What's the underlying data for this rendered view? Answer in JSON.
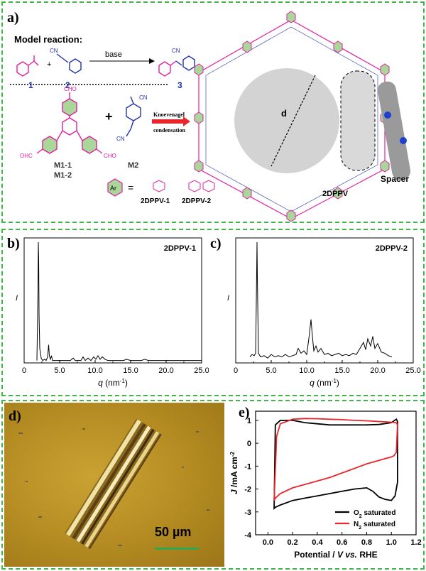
{
  "panel_a": {
    "label": "a)",
    "model_reaction_title": "Model reaction:",
    "compound_numbers": [
      "1",
      "2",
      "3"
    ],
    "base_label": "base",
    "cn_label": "CN",
    "cho_label": "CHO",
    "ohc_label": "OHC",
    "monomer_m1_lines": [
      "M1-1",
      "M1-2"
    ],
    "monomer_m2": "M2",
    "plus": "+",
    "knoevenagel_line1": "Knoevenagel",
    "knoevenagel_line2": "condensation",
    "d_label": "d",
    "spacer_label": "Spacer",
    "framework_label": "2DPPV",
    "ar_label": "Ar",
    "equals": "=",
    "variant_labels": [
      "2DPPV-1",
      "2DPPV-2"
    ]
  },
  "chart_data": [
    {
      "type": "line",
      "panel_label": "b)",
      "title": "2DPPV-1",
      "ylabel": "I",
      "xlabel_main": "q",
      "xlabel_unit": "(nm",
      "xlabel_exp": "-1",
      "xlabel_close": ")",
      "xlim": [
        0,
        25
      ],
      "ylim": [
        0,
        1
      ],
      "xticks": [
        "0",
        "5.0",
        "10.0",
        "15.0",
        "20.0",
        "25.0"
      ],
      "x": [
        1.8,
        1.95,
        2.0,
        2.05,
        2.1,
        2.2,
        2.4,
        2.6,
        2.9,
        3.1,
        3.3,
        3.45,
        3.55,
        3.7,
        3.85,
        4.0,
        4.3,
        4.8,
        5.5,
        6.0,
        6.5,
        6.9,
        7.2,
        7.6,
        8.0,
        8.3,
        8.6,
        9.0,
        9.4,
        9.8,
        10.1,
        10.4,
        10.7,
        11.0,
        11.4,
        11.8,
        12.2,
        12.6,
        13.0,
        13.5,
        14.0,
        14.4,
        15.0,
        16.0,
        16.5,
        17.0,
        17.5,
        18.5,
        20.0,
        22.0,
        25.0
      ],
      "y": [
        0.02,
        0.6,
        1.0,
        0.85,
        0.4,
        0.12,
        0.04,
        0.02,
        0.03,
        0.02,
        0.05,
        0.15,
        0.06,
        0.03,
        0.06,
        0.02,
        0.02,
        0.02,
        0.02,
        0.02,
        0.02,
        0.04,
        0.02,
        0.02,
        0.02,
        0.05,
        0.02,
        0.04,
        0.02,
        0.05,
        0.03,
        0.06,
        0.03,
        0.05,
        0.03,
        0.02,
        0.02,
        0.02,
        0.02,
        0.02,
        0.02,
        0.03,
        0.02,
        0.02,
        0.02,
        0.03,
        0.02,
        0.02,
        0.02,
        0.02,
        0.02
      ]
    },
    {
      "type": "line",
      "panel_label": "c)",
      "title": "2DPPV-2",
      "ylabel": "I",
      "xlabel_main": "q",
      "xlabel_unit": "(nm",
      "xlabel_exp": "-1",
      "xlabel_close": ")",
      "xlim": [
        0,
        25
      ],
      "ylim": [
        0,
        1
      ],
      "xticks": [
        "0",
        "5.0",
        "10.0",
        "15.0",
        "20.0",
        "25.0"
      ],
      "x": [
        2.0,
        2.3,
        2.6,
        2.8,
        2.9,
        3.0,
        3.05,
        3.2,
        3.5,
        4.0,
        4.5,
        5.0,
        5.5,
        6.0,
        6.5,
        7.0,
        7.5,
        8.0,
        8.5,
        8.8,
        9.2,
        9.6,
        10.0,
        10.3,
        10.6,
        10.8,
        11.0,
        11.3,
        11.6,
        12.0,
        12.5,
        13.0,
        13.5,
        14.0,
        14.5,
        15.0,
        15.5,
        16.0,
        16.5,
        17.0,
        17.5,
        18.0,
        18.3,
        18.6,
        19.0,
        19.3,
        19.6,
        20.0,
        20.5,
        21.0,
        21.5,
        22.0
      ],
      "y": [
        0.05,
        0.07,
        0.06,
        0.08,
        0.5,
        1.0,
        0.7,
        0.08,
        0.05,
        0.06,
        0.04,
        0.07,
        0.05,
        0.06,
        0.05,
        0.07,
        0.05,
        0.06,
        0.07,
        0.12,
        0.08,
        0.1,
        0.07,
        0.2,
        0.36,
        0.22,
        0.1,
        0.14,
        0.09,
        0.12,
        0.07,
        0.08,
        0.06,
        0.07,
        0.08,
        0.06,
        0.07,
        0.06,
        0.08,
        0.07,
        0.12,
        0.17,
        0.11,
        0.2,
        0.14,
        0.22,
        0.12,
        0.16,
        0.09,
        0.08,
        0.06,
        0.05
      ]
    },
    {
      "type": "line",
      "panel_label": "e)",
      "ylabel_main": "J",
      "ylabel_rest": " /mA cm",
      "ylabel_exp": "-2",
      "xlabel_pre": "Potential / ",
      "xlabel_v": "V",
      "xlabel_vs": " vs.",
      "xlabel_post": " RHE",
      "xlim": [
        -0.1,
        1.2
      ],
      "ylim": [
        -4,
        1.4
      ],
      "xticks": [
        "0.0",
        "0.2",
        "0.4",
        "0.6",
        "0.8",
        "1.0",
        "1.2"
      ],
      "yticks": [
        "1",
        "0",
        "-1",
        "-2",
        "-3",
        "-4"
      ],
      "series": [
        {
          "name_main": "O",
          "name_sub": "2",
          "name_rest": " saturated",
          "color": "#000000",
          "x": [
            0.05,
            0.06,
            0.1,
            0.2,
            0.3,
            0.4,
            0.5,
            0.6,
            0.7,
            0.8,
            0.9,
            1.0,
            1.04,
            1.05,
            1.05,
            1.03,
            1.0,
            0.95,
            0.9,
            0.85,
            0.8,
            0.7,
            0.6,
            0.5,
            0.4,
            0.3,
            0.2,
            0.1,
            0.06,
            0.05
          ],
          "y": [
            -2.85,
            0.8,
            1.0,
            1.0,
            0.9,
            0.85,
            0.8,
            0.8,
            0.8,
            0.8,
            0.82,
            0.9,
            1.05,
            0.95,
            -1.7,
            -2.3,
            -2.5,
            -2.45,
            -2.35,
            -2.1,
            -1.95,
            -2.0,
            -2.1,
            -2.2,
            -2.3,
            -2.4,
            -2.5,
            -2.7,
            -2.8,
            -2.85
          ]
        },
        {
          "name_main": "N",
          "name_sub": "2",
          "name_rest": " saturated",
          "color": "#e8262b",
          "x": [
            0.05,
            0.07,
            0.1,
            0.2,
            0.3,
            0.4,
            0.5,
            0.6,
            0.7,
            0.8,
            0.9,
            1.0,
            1.04,
            1.05,
            1.04,
            1.02,
            1.0,
            0.9,
            0.8,
            0.7,
            0.6,
            0.5,
            0.4,
            0.3,
            0.2,
            0.1,
            0.06,
            0.05
          ],
          "y": [
            -2.5,
            0.3,
            0.85,
            1.05,
            1.08,
            1.07,
            1.05,
            1.03,
            1.0,
            0.98,
            0.95,
            0.92,
            0.9,
            0.8,
            -0.4,
            -0.55,
            -0.6,
            -0.75,
            -0.9,
            -1.1,
            -1.3,
            -1.5,
            -1.65,
            -1.8,
            -1.95,
            -2.2,
            -2.4,
            -2.5
          ]
        }
      ]
    }
  ],
  "panel_d": {
    "label": "d)",
    "scalebar": "50 µm"
  }
}
